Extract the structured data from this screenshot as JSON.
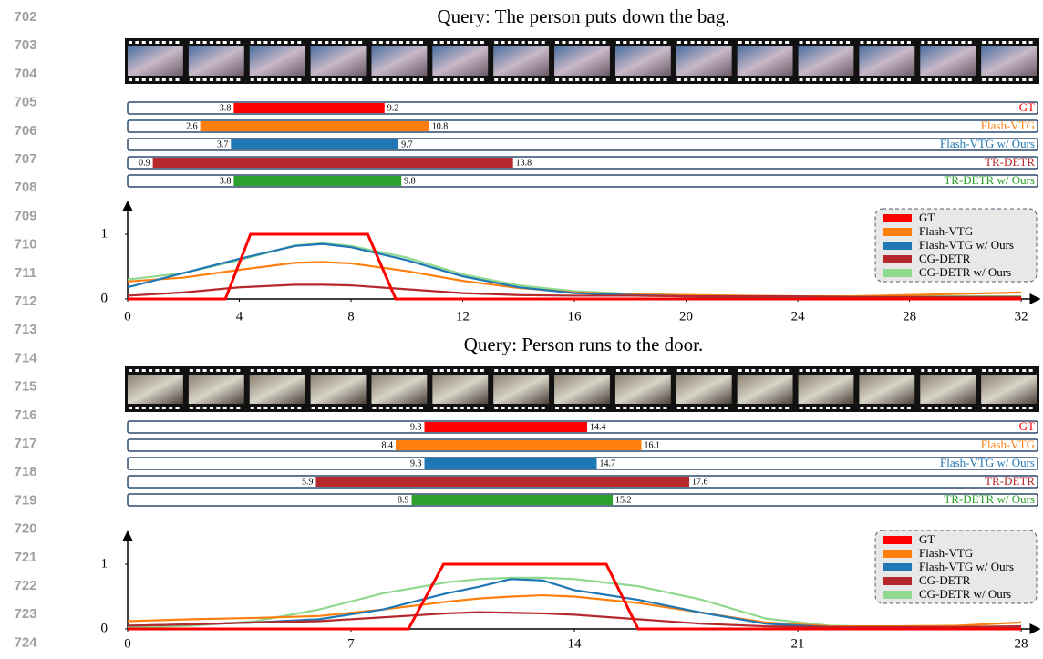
{
  "line_numbers": [
    "702",
    "703",
    "704",
    "705",
    "706",
    "707",
    "708",
    "709",
    "710",
    "711",
    "712",
    "713",
    "714",
    "715",
    "716",
    "717",
    "718",
    "719",
    "720",
    "721",
    "722",
    "723",
    "724"
  ],
  "chart_data": [
    {
      "type": "line",
      "title": "Query: The person puts down the bag.",
      "intervals": [
        {
          "name": "GT",
          "color": "#ff0000",
          "start": 3.8,
          "end": 9.2
        },
        {
          "name": "Flash-VTG",
          "color": "#ff7f0e",
          "start": 2.6,
          "end": 10.8
        },
        {
          "name": "Flash-VTG w/ Ours",
          "color": "#1f77b4",
          "start": 3.7,
          "end": 9.7
        },
        {
          "name": "TR-DETR",
          "color": "#b5282c",
          "start": 0.9,
          "end": 13.8
        },
        {
          "name": "TR-DETR w/ Ours",
          "color": "#2ca02c",
          "start": 3.8,
          "end": 9.8
        }
      ],
      "series": [
        {
          "name": "GT",
          "color": "#ff0000",
          "x": [
            0,
            3.5,
            4.4,
            8.6,
            9.6,
            32
          ],
          "values": [
            0,
            0,
            1,
            1,
            0,
            0
          ]
        },
        {
          "name": "Flash-VTG",
          "color": "#ff7f0e",
          "x": [
            0,
            2,
            4,
            6,
            7,
            8,
            10,
            12,
            14,
            16,
            18,
            20,
            22,
            24,
            26,
            28,
            30,
            32
          ],
          "values": [
            0.27,
            0.33,
            0.45,
            0.56,
            0.57,
            0.55,
            0.43,
            0.28,
            0.17,
            0.1,
            0.07,
            0.06,
            0.05,
            0.04,
            0.04,
            0.06,
            0.08,
            0.1
          ]
        },
        {
          "name": "Flash-VTG w/ Ours",
          "color": "#1f77b4",
          "x": [
            0,
            2,
            4,
            6,
            7,
            8,
            10,
            12,
            14,
            16,
            18,
            20,
            22,
            24,
            26,
            28,
            30,
            32
          ],
          "values": [
            0.18,
            0.4,
            0.62,
            0.82,
            0.85,
            0.8,
            0.6,
            0.35,
            0.18,
            0.09,
            0.06,
            0.04,
            0.03,
            0.03,
            0.02,
            0.02,
            0.02,
            0.02
          ]
        },
        {
          "name": "CG-DETR",
          "color": "#b5282c",
          "x": [
            0,
            2,
            4,
            6,
            7,
            8,
            10,
            12,
            14,
            16,
            18,
            20,
            22,
            24,
            26,
            28,
            30,
            32
          ],
          "values": [
            0.05,
            0.1,
            0.18,
            0.22,
            0.22,
            0.21,
            0.15,
            0.09,
            0.06,
            0.05,
            0.05,
            0.04,
            0.04,
            0.04,
            0.03,
            0.03,
            0.03,
            0.03
          ]
        },
        {
          "name": "CG-DETR w/ Ours",
          "color": "#8fd98f",
          "x": [
            0,
            2,
            4,
            6,
            7,
            8,
            10,
            12,
            14,
            16,
            18,
            20,
            22,
            24,
            26,
            28,
            30,
            32
          ],
          "values": [
            0.3,
            0.4,
            0.6,
            0.83,
            0.86,
            0.82,
            0.64,
            0.38,
            0.21,
            0.12,
            0.08,
            0.06,
            0.05,
            0.04,
            0.04,
            0.04,
            0.04,
            0.04
          ]
        }
      ],
      "xlim": [
        0,
        32.65
      ],
      "xticks": [
        0,
        4,
        8,
        12,
        16,
        20,
        24,
        28,
        32
      ],
      "ylim": [
        0,
        1.5
      ],
      "yticks": [
        0,
        1
      ]
    },
    {
      "type": "line",
      "title": "Query: Person runs to the door.",
      "intervals": [
        {
          "name": "GT",
          "color": "#ff0000",
          "start": 9.3,
          "end": 14.4
        },
        {
          "name": "Flash-VTG",
          "color": "#ff7f0e",
          "start": 8.4,
          "end": 16.1
        },
        {
          "name": "Flash-VTG w/ Ours",
          "color": "#1f77b4",
          "start": 9.3,
          "end": 14.7
        },
        {
          "name": "TR-DETR",
          "color": "#b5282c",
          "start": 5.9,
          "end": 17.6
        },
        {
          "name": "TR-DETR w/ Ours",
          "color": "#2ca02c",
          "start": 8.9,
          "end": 15.2
        }
      ],
      "series": [
        {
          "name": "GT",
          "color": "#ff0000",
          "x": [
            0,
            8.8,
            9.9,
            15,
            16,
            28
          ],
          "values": [
            0,
            0,
            1,
            1,
            0,
            0
          ]
        },
        {
          "name": "Flash-VTG",
          "color": "#ff7f0e",
          "x": [
            0,
            2,
            4,
            6,
            8,
            10,
            11,
            12,
            13,
            14,
            16,
            18,
            20,
            22,
            24,
            26,
            28
          ],
          "values": [
            0.12,
            0.15,
            0.17,
            0.2,
            0.3,
            0.42,
            0.47,
            0.5,
            0.52,
            0.5,
            0.4,
            0.25,
            0.1,
            0.04,
            0.04,
            0.05,
            0.1
          ]
        },
        {
          "name": "Flash-VTG w/ Ours",
          "color": "#1f77b4",
          "x": [
            0,
            2,
            4,
            6,
            8,
            10,
            11,
            12,
            13,
            14,
            16,
            18,
            20,
            22,
            24,
            26,
            28
          ],
          "values": [
            0.05,
            0.07,
            0.1,
            0.15,
            0.3,
            0.55,
            0.65,
            0.77,
            0.75,
            0.6,
            0.45,
            0.25,
            0.08,
            0.03,
            0.02,
            0.02,
            0.03
          ]
        },
        {
          "name": "CG-DETR",
          "color": "#b5282c",
          "x": [
            0,
            2,
            4,
            6,
            8,
            10,
            11,
            12,
            13,
            14,
            16,
            18,
            20,
            22,
            24,
            26,
            28
          ],
          "values": [
            0.05,
            0.07,
            0.1,
            0.12,
            0.18,
            0.24,
            0.26,
            0.25,
            0.24,
            0.22,
            0.15,
            0.08,
            0.04,
            0.03,
            0.03,
            0.03,
            0.04
          ]
        },
        {
          "name": "CG-DETR w/ Ours",
          "color": "#8fd98f",
          "x": [
            0,
            2,
            4,
            6,
            8,
            10,
            11,
            12,
            13,
            14,
            16,
            18,
            20,
            22,
            24,
            26,
            28
          ],
          "values": [
            0.02,
            0.05,
            0.12,
            0.3,
            0.55,
            0.72,
            0.77,
            0.79,
            0.79,
            0.77,
            0.66,
            0.45,
            0.16,
            0.05,
            0.03,
            0.03,
            0.04
          ]
        }
      ],
      "xlim": [
        0,
        28.57
      ],
      "xticks": [
        0,
        7,
        14,
        21,
        28
      ],
      "ylim": [
        0,
        1.5
      ],
      "yticks": [
        0,
        1
      ]
    }
  ]
}
